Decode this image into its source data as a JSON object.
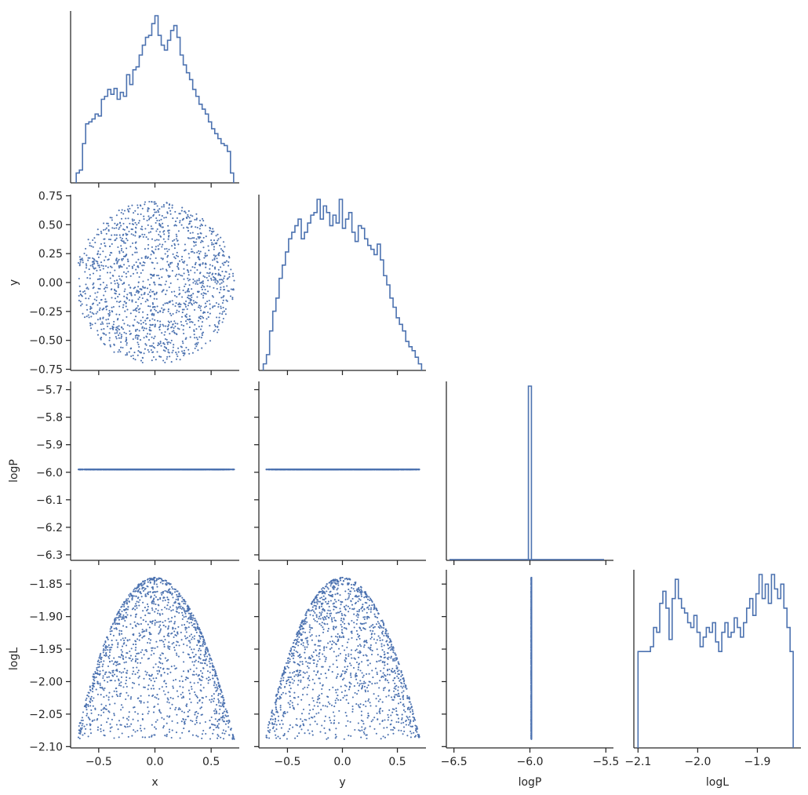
{
  "chart_data": {
    "type": "scatter",
    "variables": [
      "x",
      "y",
      "logP",
      "logL"
    ],
    "color": "#4c72b0",
    "background": "#ffffff",
    "grid": false,
    "legend": "none",
    "n_samples": 1500,
    "relationships": {
      "x_y": "points uniformly filling a disk of radius ~0.7 centred at (0, 0)",
      "logP": "constant -5.99 for every sample",
      "logL": "approximately -1.84 - 0.5*(x^2 + y^2)"
    },
    "axes": {
      "x": {
        "label": "x",
        "range": [
          -0.75,
          0.75
        ],
        "ticks": [
          -0.5,
          0.0,
          0.5
        ],
        "tick_labels": [
          "−0.5",
          "0.0",
          "0.5"
        ]
      },
      "y": {
        "label": "y",
        "range": [
          -0.76,
          0.76
        ],
        "ticks": [
          -0.75,
          -0.5,
          -0.25,
          0.0,
          0.25,
          0.5,
          0.75
        ],
        "tick_labels": [
          "−0.75",
          "−0.50",
          "−0.25",
          "0.00",
          "0.25",
          "0.50",
          "0.75"
        ]
      },
      "logP": {
        "label": "logP",
        "row_range": [
          -6.32,
          -5.67
        ],
        "row_ticks": [
          -6.3,
          -6.2,
          -6.1,
          -6.0,
          -5.9,
          -5.8,
          -5.7
        ],
        "row_tick_labels": [
          "−6.3",
          "−6.2",
          "−6.1",
          "−6.0",
          "−5.9",
          "−5.8",
          "−5.7"
        ],
        "col_range": [
          -6.55,
          -5.45
        ],
        "col_ticks": [
          -6.5,
          -6.0,
          -5.5
        ],
        "col_tick_labels": [
          "−6.5",
          "−6.0",
          "−5.5"
        ]
      },
      "logL": {
        "label": "logL",
        "row_range": [
          -2.102,
          -1.828
        ],
        "row_ticks": [
          -2.1,
          -2.05,
          -2.0,
          -1.95,
          -1.9,
          -1.85
        ],
        "row_tick_labels": [
          "−2.10",
          "−2.05",
          "−2.00",
          "−1.95",
          "−1.90",
          "−1.85"
        ],
        "col_range": [
          -2.107,
          -1.827
        ],
        "col_ticks": [
          -2.1,
          -2.0,
          -1.9
        ],
        "col_tick_labels": [
          "−2.1",
          "−2.0",
          "−1.9"
        ]
      }
    },
    "histograms": {
      "x": {
        "range": [
          -0.7,
          0.7
        ],
        "bins": 50,
        "counts": [
          10,
          13,
          40,
          60,
          62,
          65,
          70,
          68,
          85,
          88,
          95,
          90,
          96,
          85,
          92,
          88,
          110,
          100,
          115,
          118,
          130,
          140,
          148,
          150,
          162,
          170,
          150,
          140,
          135,
          145,
          155,
          160,
          148,
          130,
          120,
          112,
          105,
          95,
          88,
          80,
          75,
          70,
          62,
          55,
          50,
          45,
          40,
          38,
          32,
          10
        ]
      },
      "y": {
        "range": [
          -0.72,
          0.72
        ],
        "bins": 50,
        "counts": [
          5,
          12,
          30,
          45,
          55,
          70,
          80,
          90,
          100,
          105,
          110,
          115,
          100,
          105,
          112,
          118,
          120,
          130,
          115,
          125,
          120,
          110,
          118,
          112,
          130,
          108,
          115,
          120,
          105,
          98,
          110,
          108,
          100,
          95,
          92,
          88,
          96,
          84,
          72,
          65,
          55,
          48,
          40,
          35,
          30,
          22,
          18,
          15,
          10,
          5
        ]
      },
      "logP": {
        "range": [
          -6.01,
          -5.99
        ],
        "bins": 1,
        "counts": [
          1500
        ],
        "peak_label_value": -5.99
      },
      "logL": {
        "range": [
          -2.1,
          -1.84
        ],
        "bins": 50,
        "counts": [
          40,
          40,
          40,
          40,
          42,
          50,
          48,
          60,
          65,
          58,
          45,
          62,
          70,
          62,
          58,
          56,
          52,
          50,
          55,
          48,
          42,
          46,
          50,
          48,
          52,
          44,
          40,
          48,
          52,
          46,
          48,
          54,
          50,
          46,
          52,
          58,
          62,
          55,
          64,
          72,
          62,
          68,
          60,
          72,
          66,
          62,
          68,
          58,
          50,
          40
        ]
      }
    }
  }
}
